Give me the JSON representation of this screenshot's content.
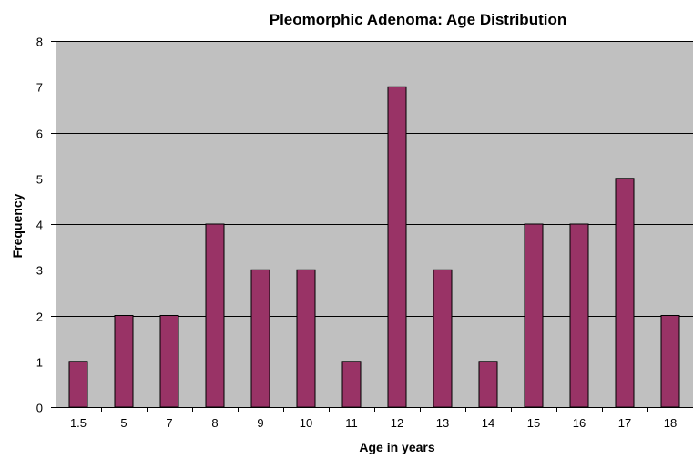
{
  "chart_data": {
    "type": "bar",
    "title": "Pleomorphic Adenoma:  Age Distribution",
    "xlabel": "Age in  years",
    "ylabel": "Frequency",
    "categories": [
      "1.5",
      "5",
      "7",
      "8",
      "9",
      "10",
      "11",
      "12",
      "13",
      "14",
      "15",
      "16",
      "17",
      "18"
    ],
    "values": [
      1,
      2,
      2,
      4,
      3,
      3,
      1,
      7,
      3,
      1,
      4,
      4,
      5,
      2
    ],
    "ylim": [
      0,
      8
    ],
    "yticks": [
      "0",
      "1",
      "2",
      "3",
      "4",
      "5",
      "6",
      "7",
      "8"
    ],
    "grid": true,
    "legend": "none",
    "colors": {
      "bar_fill": "#993366",
      "bar_stroke": "#000000",
      "plot_background": "#c0c0c0",
      "gridline": "#000000",
      "page_background": "#ffffff"
    }
  }
}
